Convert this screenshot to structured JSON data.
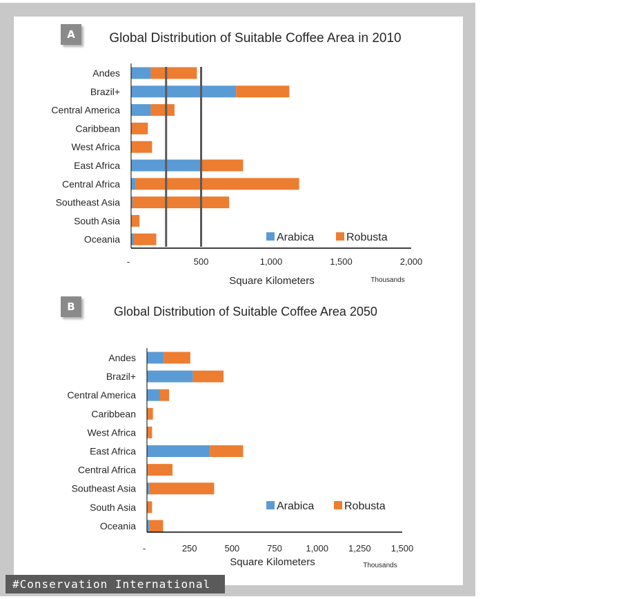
{
  "figure": {
    "badge_a": "A",
    "badge_b": "B",
    "watermark": "#Conservation International"
  },
  "colors": {
    "arabica": "#5b9bd5",
    "robusta": "#ed7d31",
    "axis": "#000000",
    "marker_line": "#595959",
    "text": "#262626"
  },
  "chart_data": [
    {
      "type": "bar",
      "orientation": "horizontal",
      "stacked": true,
      "title": "Global Distribution of Suitable Coffee  Area in 2010",
      "xlabel": "Square Kilometers",
      "xunit_note": "Thousands",
      "categories": [
        "Andes",
        "Brazil+",
        "Central America",
        "Caribbean",
        "West Africa",
        "East Africa",
        "Central Africa",
        "Southeast Asia",
        "South Asia",
        "Oceania"
      ],
      "series": [
        {
          "name": "Arabica",
          "values": [
            140,
            750,
            140,
            0,
            0,
            500,
            30,
            10,
            0,
            20
          ]
        },
        {
          "name": "Robusta",
          "values": [
            330,
            380,
            170,
            120,
            150,
            300,
            1170,
            690,
            60,
            160
          ]
        }
      ],
      "xlim": [
        0,
        2000
      ],
      "xticks": [
        0,
        500,
        1000,
        1500,
        2000
      ],
      "xtick_labels": [
        "-",
        "500",
        "1,000",
        "1,500",
        "2,000"
      ],
      "reference_lines": [
        250,
        500
      ],
      "legend": "bottom-right"
    },
    {
      "type": "bar",
      "orientation": "horizontal",
      "stacked": true,
      "title": "Global Distribution of Suitable Coffee Area 2050",
      "xlabel": "Square Kilometers",
      "xunit_note": "Thousands",
      "categories": [
        "Andes",
        "Brazil+",
        "Central America",
        "Caribbean",
        "West Africa",
        "East Africa",
        "Central Africa",
        "Southeast Asia",
        "South Asia",
        "Oceania"
      ],
      "series": [
        {
          "name": "Arabica",
          "values": [
            100,
            270,
            75,
            0,
            0,
            370,
            5,
            15,
            0,
            15
          ]
        },
        {
          "name": "Robusta",
          "values": [
            155,
            180,
            55,
            35,
            30,
            195,
            145,
            380,
            30,
            80
          ]
        }
      ],
      "xlim": [
        0,
        1500
      ],
      "xticks": [
        0,
        250,
        500,
        750,
        1000,
        1250,
        1500
      ],
      "xtick_labels": [
        "-",
        "250",
        "500",
        "750",
        "1,000",
        "1,250",
        "1,500"
      ],
      "legend": "bottom-right"
    }
  ]
}
